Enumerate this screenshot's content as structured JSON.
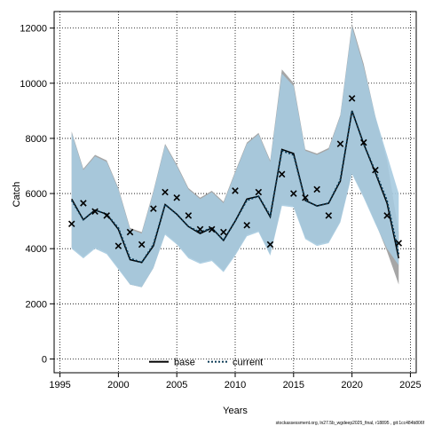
{
  "chart_data": {
    "type": "line",
    "xlabel": "Years",
    "ylabel": "Catch",
    "xlim": [
      1994.5,
      2025.5
    ],
    "ylim": [
      -500,
      12600
    ],
    "xticks": [
      1995,
      2000,
      2005,
      2010,
      2015,
      2020,
      2025
    ],
    "yticks": [
      0,
      2000,
      4000,
      6000,
      8000,
      10000,
      12000
    ],
    "grid": true,
    "legend_position": "bottom-center",
    "series": [
      {
        "name": "base",
        "style": "solid",
        "color": "#000000",
        "band_color": "#a6a6a6",
        "x": [
          1996,
          1997,
          1998,
          1999,
          2000,
          2001,
          2002,
          2003,
          2004,
          2005,
          2006,
          2007,
          2008,
          2009,
          2010,
          2011,
          2012,
          2013,
          2014,
          2015,
          2016,
          2017,
          2018,
          2019,
          2020,
          2021,
          2022,
          2023,
          2024
        ],
        "mid": [
          5800,
          5050,
          5400,
          5250,
          4700,
          3600,
          3500,
          4100,
          5600,
          5250,
          4800,
          4550,
          4750,
          4300,
          5000,
          5800,
          5900,
          5150,
          7600,
          7450,
          5750,
          5550,
          5650,
          6450,
          9000,
          7800,
          6750,
          5650,
          3650
        ],
        "upper": [
          8250,
          6900,
          7400,
          7200,
          6200,
          4750,
          4600,
          6100,
          7800,
          7050,
          6200,
          5850,
          6100,
          5700,
          6800,
          7850,
          8200,
          7200,
          10500,
          10000,
          7600,
          7450,
          7650,
          8850,
          12150,
          10700,
          8800,
          7200,
          4600
        ],
        "lower": [
          4050,
          3700,
          4050,
          3850,
          3300,
          2700,
          2600,
          3300,
          4550,
          4200,
          3700,
          3500,
          3600,
          3200,
          3800,
          4500,
          4650,
          3800,
          5600,
          5550,
          4400,
          4150,
          4250,
          5000,
          6750,
          5900,
          4950,
          3900,
          2700
        ]
      },
      {
        "name": "current",
        "style": "dotted",
        "color": "#000000",
        "band_color": "#a7cbe0",
        "x": [
          1996,
          1997,
          1998,
          1999,
          2000,
          2001,
          2002,
          2003,
          2004,
          2005,
          2006,
          2007,
          2008,
          2009,
          2010,
          2011,
          2012,
          2013,
          2014,
          2015,
          2016,
          2017,
          2018,
          2019,
          2020,
          2021,
          2022,
          2023,
          2024
        ],
        "mid": [
          5750,
          5050,
          5400,
          5250,
          4750,
          3650,
          3500,
          4150,
          5600,
          5250,
          4800,
          4600,
          4750,
          4300,
          5000,
          5750,
          5900,
          5200,
          7550,
          7400,
          5750,
          5550,
          5650,
          6500,
          9000,
          7800,
          6800,
          5750,
          3800
        ],
        "upper": [
          8200,
          6850,
          7350,
          7150,
          6150,
          4700,
          4550,
          6050,
          7750,
          7000,
          6150,
          5800,
          6050,
          5650,
          6750,
          7800,
          8150,
          7150,
          10350,
          9900,
          7550,
          7400,
          7600,
          8800,
          12050,
          10600,
          8800,
          7400,
          6000
        ],
        "lower": [
          4000,
          3650,
          4000,
          3800,
          3250,
          2700,
          2600,
          3300,
          4500,
          4150,
          3650,
          3450,
          3550,
          3150,
          3750,
          4450,
          4600,
          3750,
          5550,
          5500,
          4350,
          4100,
          4200,
          4950,
          6700,
          5850,
          4900,
          4000,
          3400
        ]
      }
    ],
    "observations": {
      "marker": "x",
      "x": [
        1996,
        1997,
        1998,
        1999,
        2000,
        2001,
        2002,
        2003,
        2004,
        2005,
        2006,
        2007,
        2008,
        2009,
        2010,
        2011,
        2012,
        2013,
        2014,
        2015,
        2016,
        2017,
        2018,
        2019,
        2020,
        2021,
        2022,
        2023,
        2024
      ],
      "y": [
        4900,
        5650,
        5350,
        5200,
        4100,
        4600,
        4150,
        5450,
        6050,
        5850,
        5200,
        4700,
        4700,
        4600,
        6100,
        4850,
        6050,
        4150,
        6700,
        6000,
        5850,
        6150,
        5200,
        7800,
        9450,
        7850,
        6850,
        5200,
        4200
      ]
    }
  },
  "footer_text": "stockassessment.org, ln27.5b_wgdeep2025_final, r18895 , git:1cc484b806f"
}
